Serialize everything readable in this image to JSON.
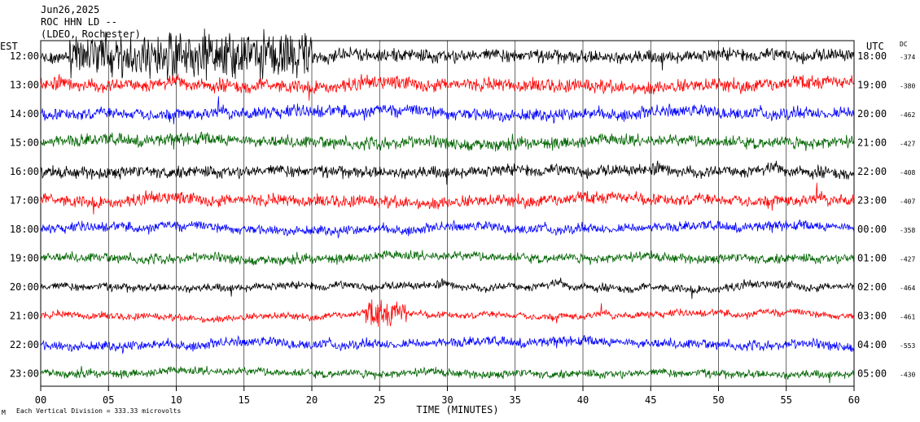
{
  "header": {
    "date": "Jun26,2025",
    "station": "ROC HHN LD --",
    "network": "(LDEO, Rochester)"
  },
  "left_axis_label": "EST",
  "right_axis_label": "UTC",
  "dc_label": "DC",
  "footer_note": "Each Vertical Division = 333.33 microvolts",
  "footer_mark": "M",
  "colors": {
    "black": "#000000",
    "red": "#ff0000",
    "blue": "#0000ff",
    "green": "#006400",
    "grid": "#000000"
  },
  "chart_data": {
    "type": "line",
    "title": "",
    "xlabel": "TIME (MINUTES)",
    "ylabel": "",
    "xlim": [
      0,
      60
    ],
    "x_ticks": [
      "00",
      "05",
      "10",
      "15",
      "20",
      "25",
      "30",
      "35",
      "40",
      "45",
      "50",
      "55",
      "60"
    ],
    "grid": true,
    "series": [
      {
        "est": "12:00",
        "utc": "18:00",
        "dc": "-374",
        "color": "#000000",
        "amp": 10,
        "burst": {
          "start": 2,
          "end": 20,
          "amp": 34
        }
      },
      {
        "est": "13:00",
        "utc": "19:00",
        "dc": "-380",
        "color": "#ff0000",
        "amp": 10,
        "burst": null
      },
      {
        "est": "14:00",
        "utc": "20:00",
        "dc": "-462",
        "color": "#0000ff",
        "amp": 9,
        "burst": null
      },
      {
        "est": "15:00",
        "utc": "21:00",
        "dc": "-427",
        "color": "#006400",
        "amp": 9,
        "burst": null
      },
      {
        "est": "16:00",
        "utc": "22:00",
        "dc": "-408",
        "color": "#000000",
        "amp": 9,
        "burst": null
      },
      {
        "est": "17:00",
        "utc": "23:00",
        "dc": "-407",
        "color": "#ff0000",
        "amp": 9,
        "burst": null
      },
      {
        "est": "18:00",
        "utc": "00:00",
        "dc": "-358",
        "color": "#0000ff",
        "amp": 7,
        "burst": null
      },
      {
        "est": "19:00",
        "utc": "01:00",
        "dc": "-427",
        "color": "#006400",
        "amp": 7,
        "burst": null
      },
      {
        "est": "20:00",
        "utc": "02:00",
        "dc": "-464",
        "color": "#000000",
        "amp": 6,
        "burst": null
      },
      {
        "est": "21:00",
        "utc": "03:00",
        "dc": "-461",
        "color": "#ff0000",
        "amp": 5,
        "burst": {
          "start": 24,
          "end": 27,
          "amp": 20
        }
      },
      {
        "est": "22:00",
        "utc": "04:00",
        "dc": "-553",
        "color": "#0000ff",
        "amp": 7,
        "burst": null
      },
      {
        "est": "23:00",
        "utc": "05:00",
        "dc": "-430",
        "color": "#006400",
        "amp": 6,
        "burst": null
      }
    ]
  }
}
